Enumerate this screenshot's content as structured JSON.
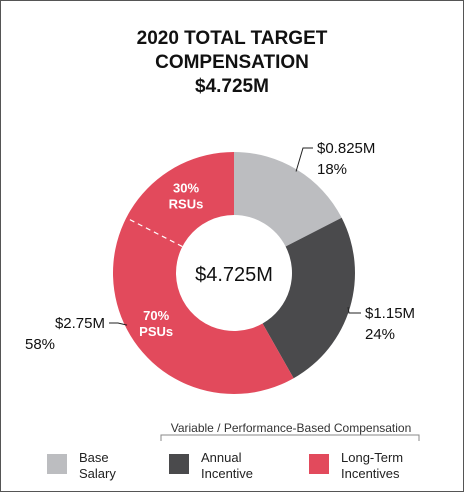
{
  "title": {
    "line1": "2020 TOTAL TARGET",
    "line2": "COMPENSATION",
    "line3": "$4.725M"
  },
  "chart_data": {
    "type": "pie",
    "donut": true,
    "center_label": "$4.725M",
    "slices": [
      {
        "key": "base",
        "value": 0.825,
        "percent": 18,
        "value_label": "$0.825M",
        "percent_label": "18%",
        "color": "#bcbdc0"
      },
      {
        "key": "annual",
        "value": 1.15,
        "percent": 24,
        "value_label": "$1.15M",
        "percent_label": "24%",
        "color": "#4a4a4c"
      },
      {
        "key": "lti",
        "value": 2.75,
        "percent": 58,
        "value_label": "$2.75M",
        "percent_label": "58%",
        "color": "#e24a5c",
        "sub_split": [
          {
            "fraction": 0.3,
            "line1": "30%",
            "line2": "RSUs"
          },
          {
            "fraction": 0.7,
            "line1": "70%",
            "line2": "PSUs"
          }
        ]
      }
    ],
    "legend": [
      {
        "line1": "Base",
        "line2": "Salary",
        "color": "#bcbdc0"
      },
      {
        "line1": "Annual",
        "line2": "Incentive",
        "color": "#4a4a4c"
      },
      {
        "line1": "Long-Term",
        "line2": "Incentives",
        "color": "#e24a5c"
      }
    ],
    "bracket_label": "Variable / Performance-Based Compensation"
  }
}
